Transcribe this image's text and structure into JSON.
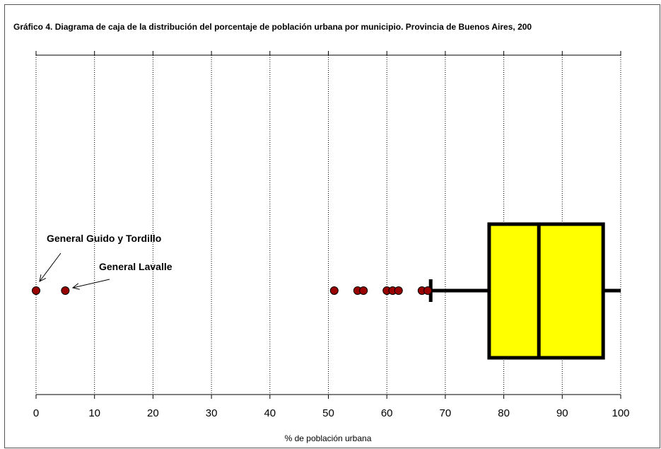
{
  "chart_data": {
    "type": "boxplot",
    "orientation": "horizontal",
    "title": "Gráfico 4. Diagrama de caja de la distribución del porcentaje de población urbana por municipio. Provincia de Buenos Aires, 200",
    "xlabel": "% de población urbana",
    "xlim": [
      0,
      100
    ],
    "xticks": [
      "0",
      "10",
      "20",
      "30",
      "40",
      "50",
      "60",
      "70",
      "80",
      "90",
      "100"
    ],
    "grid": "vertical-dotted",
    "box": {
      "whisker_low": 67.5,
      "q1": 77.5,
      "median": 86,
      "q3": 97,
      "whisker_high": 100
    },
    "outliers": [
      0,
      5,
      51,
      55,
      56,
      60,
      61,
      62,
      66,
      67
    ],
    "annotations": [
      {
        "text": "General Guido y Tordillo",
        "x": 0
      },
      {
        "text": "General Lavalle",
        "x": 5
      }
    ],
    "colors": {
      "box_fill": "#ffff00",
      "box_stroke": "#000000",
      "outlier_fill": "#990000",
      "grid": "#000000"
    }
  }
}
